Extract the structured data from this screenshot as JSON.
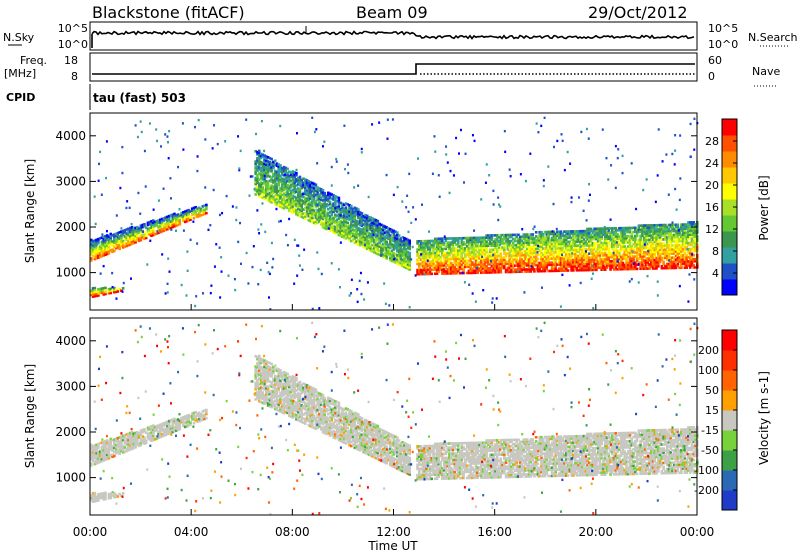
{
  "header": {
    "station": "Blackstone (fitACF)",
    "beam": "Beam 09",
    "date": "29/Oct/2012"
  },
  "strips": {
    "nsky_label": "N.Sky",
    "nsky_ticks": [
      "10^5",
      "10^0"
    ],
    "nsearch_label": "N.Search",
    "nsearch_ticks": [
      "10^5",
      "10^0"
    ],
    "freq_label": "Freq.",
    "freq_unit": "[MHz]",
    "freq_ticks": [
      "18",
      "8"
    ],
    "nave_label": "Nave",
    "nave_ticks": [
      "60",
      "0"
    ],
    "cpid_label": "CPID",
    "cpid_text": "tau (fast) 503"
  },
  "chart_data": [
    {
      "type": "heatmap",
      "title": "Power",
      "ylabel": "Slant Range [km]",
      "xlabel": "",
      "xlim": [
        0,
        24
      ],
      "ylim": [
        180,
        4500
      ],
      "yticks": [
        "4000",
        "3000",
        "2000",
        "1000"
      ],
      "colorbar": {
        "label": "Power [dB]",
        "ticks": [
          "28",
          "24",
          "20",
          "16",
          "12",
          "8",
          "4"
        ],
        "colors": [
          "#0000ff",
          "#1e50c8",
          "#32a0a0",
          "#3c9650",
          "#64c832",
          "#a8e028",
          "#ffff00",
          "#ffc800",
          "#ff8c00",
          "#ff5000",
          "#ff0000"
        ]
      },
      "bands": [
        {
          "name": "early-band",
          "t": [
            0.0,
            4.6
          ],
          "r_start": [
            1250,
            2300
          ],
          "r_end": [
            1700,
            2500
          ],
          "power": "high-low"
        },
        {
          "name": "morning-spot",
          "t": [
            0.0,
            1.3
          ],
          "r_start": [
            450,
            600
          ],
          "r_end": [
            650,
            650
          ],
          "power": "high"
        },
        {
          "name": "descending-band",
          "t": [
            6.5,
            12.6
          ],
          "r_start": [
            2700,
            1050
          ],
          "r_end": [
            3700,
            1700
          ],
          "power": "mid"
        },
        {
          "name": "afternoon-band",
          "t": [
            12.9,
            24.0
          ],
          "r_start": [
            950,
            1100
          ],
          "r_end": [
            1700,
            2100
          ],
          "power": "high"
        }
      ]
    },
    {
      "type": "heatmap",
      "title": "Velocity",
      "ylabel": "Slant Range [km]",
      "xlabel": "Time UT",
      "xlim": [
        0,
        24
      ],
      "ylim": [
        180,
        4500
      ],
      "yticks": [
        "4000",
        "3000",
        "2000",
        "1000"
      ],
      "xticks": [
        "00:00",
        "04:00",
        "08:00",
        "12:00",
        "16:00",
        "20:00",
        "00:00"
      ],
      "colorbar": {
        "label": "Velocity [m s-1]",
        "ticks": [
          "200",
          "100",
          "50",
          "15",
          "-15",
          "-50",
          "-100",
          "-200"
        ],
        "colors": [
          "#1e3cc8",
          "#2a6ab4",
          "#3ca046",
          "#78d23c",
          "#c8c8c0",
          "#ffa000",
          "#ff6400",
          "#ff3000",
          "#ff0000"
        ]
      }
    }
  ]
}
